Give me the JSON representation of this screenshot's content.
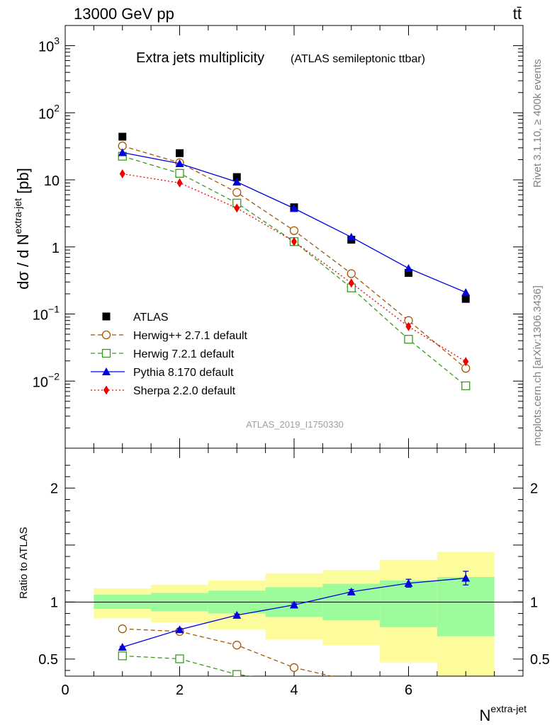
{
  "header": {
    "energy_label": "13000 GeV pp",
    "process_label": "tt̄",
    "plot_title": "Extra jets multiplicity",
    "plot_subtitle": "(ATLAS semileptonic ttbar)",
    "analysis_id": "ATLAS_2019_I1750330",
    "side_label_top": "Rivet 3.1.10, ≥ 400k events",
    "side_label_bottom": "mcplots.cern.ch [arXiv:1306.3436]"
  },
  "chart_data": [
    {
      "type": "line",
      "title": "Extra jets multiplicity",
      "subtitle": "(ATLAS semileptonic ttbar)",
      "ylabel": "dσ / d N^extra-jet [pb]",
      "yscale": "log",
      "ylim": [
        0.001,
        2000
      ],
      "xlim": [
        0,
        8
      ],
      "y_ticks": [
        "10^-2",
        "10^-1",
        "1",
        "10",
        "10^2",
        "10^3"
      ],
      "legend_position": "bottom-left",
      "x": [
        1,
        2,
        3,
        4,
        5,
        6,
        7
      ],
      "series": [
        {
          "name": "ATLAS",
          "style": "data",
          "color": "#000000",
          "marker": "square",
          "values": [
            44,
            25,
            11,
            3.9,
            1.28,
            0.41,
            0.168
          ]
        },
        {
          "name": "Herwig++ 2.7.1 default",
          "color": "#a65600",
          "marker": "open-circle",
          "dash": "6,4",
          "values": [
            32,
            18,
            6.5,
            1.75,
            0.4,
            0.08,
            0.0155
          ]
        },
        {
          "name": "Herwig 7.2.1 default",
          "color": "#3a9a1a",
          "marker": "open-square",
          "dash": "6,4",
          "values": [
            22.5,
            12.5,
            4.5,
            1.2,
            0.245,
            0.042,
            0.0085
          ]
        },
        {
          "name": "Pythia 8.170 default",
          "color": "#0000e0",
          "marker": "triangle",
          "dash": "",
          "values": [
            25.5,
            17.5,
            9.3,
            3.75,
            1.4,
            0.48,
            0.21
          ]
        },
        {
          "name": "Sherpa 2.2.0 default",
          "color": "#f00000",
          "marker": "diamond",
          "dash": "2,3",
          "values": [
            12.3,
            9.0,
            3.8,
            1.2,
            0.29,
            0.065,
            0.0195
          ]
        }
      ]
    },
    {
      "type": "line",
      "ylabel": "Ratio to ATLAS",
      "xlabel": "N^extra-jet",
      "ylim": [
        0.35,
        2.35
      ],
      "xlim": [
        0,
        8
      ],
      "x_ticks": [
        "0",
        "2",
        "4",
        "6"
      ],
      "y_ticks": [
        "0.5",
        "1",
        "2"
      ],
      "bands": {
        "edges": [
          0.5,
          1.5,
          2.5,
          3.5,
          4.5,
          5.5,
          6.5,
          7.5
        ],
        "stat_low": [
          0.94,
          0.92,
          0.9,
          0.87,
          0.84,
          0.78,
          0.7
        ],
        "stat_high": [
          1.065,
          1.08,
          1.1,
          1.13,
          1.16,
          1.19,
          1.22
        ],
        "total_low": [
          0.86,
          0.82,
          0.76,
          0.67,
          0.62,
          0.47,
          0.35
        ],
        "total_high": [
          1.12,
          1.15,
          1.19,
          1.25,
          1.28,
          1.37,
          1.44
        ],
        "stat_color": "#9cfc9c",
        "total_color": "#fcfc9c"
      },
      "x": [
        1,
        2,
        3,
        4,
        5,
        6,
        7
      ],
      "series": [
        {
          "name": "Herwig++ 2.7.1 default",
          "color": "#a65600",
          "marker": "open-circle",
          "dash": "6,4",
          "values": [
            0.765,
            0.742,
            0.622,
            0.425,
            0.31,
            null,
            null
          ]
        },
        {
          "name": "Herwig 7.2.1 default",
          "color": "#3a9a1a",
          "marker": "open-square",
          "dash": "6,4",
          "values": [
            0.528,
            0.502,
            0.365,
            0.3,
            null,
            null,
            null
          ]
        },
        {
          "name": "Pythia 8.170 default",
          "color": "#0000e0",
          "marker": "triangle",
          "dash": "",
          "values": [
            0.605,
            0.758,
            0.885,
            0.975,
            1.09,
            1.165,
            1.21
          ],
          "errors": [
            0.006,
            0.008,
            0.01,
            0.012,
            0.02,
            0.035,
            0.06
          ]
        }
      ]
    }
  ]
}
